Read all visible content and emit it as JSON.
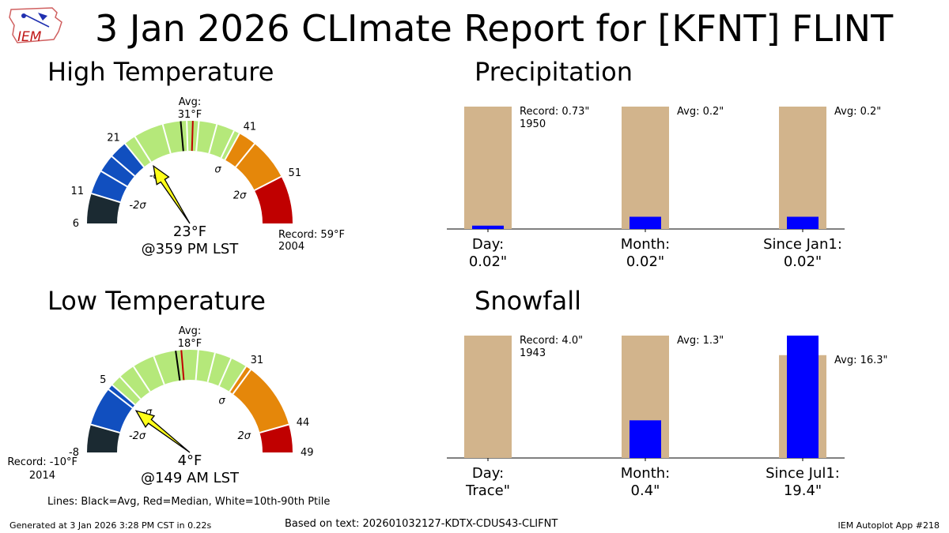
{
  "title": "3 Jan 2026 CLImate Report for [KFNT] FLINT",
  "logo_text": "IEM",
  "footer": {
    "generated": "Generated at 3 Jan 2026 3:28 PM CST in 0.22s",
    "source": "Based on text: 202601032127-KDTX-CDUS43-CLIFNT",
    "app": "IEM Autoplot App #218"
  },
  "legend_note": "Lines: Black=Avg, Red=Median, White=10th-90th Ptile",
  "colors": {
    "band_m3": "#1b2a32",
    "band_m2": "#114fbf",
    "band_m1": "#b5e87a",
    "band_p1": "#b5e87a",
    "band_p2": "#e5870a",
    "band_p3": "#c00000",
    "avg_bar": "#d2b48c",
    "obs_bar": "#0000ff",
    "needle": "#ffff1a"
  },
  "chart_data": [
    {
      "type": "gauge",
      "id": "high",
      "title": "High Temperature",
      "min": 6,
      "max": 59,
      "ticks": [
        6,
        11,
        21,
        41,
        51
      ],
      "bands": [
        6,
        11,
        21,
        31,
        41,
        51,
        59
      ],
      "sigma_labels": [
        "-2σ",
        "-σ",
        "σ",
        "2σ"
      ],
      "sigma_values": [
        11,
        21,
        41,
        51
      ],
      "avg": 31,
      "avg_label": "Avg:",
      "avg_value": "31°F",
      "median": 33,
      "percentile_lines": [
        15,
        18,
        23,
        28,
        32,
        34,
        37,
        40,
        44
      ],
      "value": 23,
      "value_label": "23°F",
      "time_label": "@359 PM LST",
      "record_label": "Record: 59°F",
      "record_year": "2004",
      "record_side": "right"
    },
    {
      "type": "gauge",
      "id": "low",
      "title": "Low Temperature",
      "min": -8,
      "max": 49,
      "ticks": [
        -8,
        5,
        31,
        44,
        49
      ],
      "bands": [
        -8,
        -3,
        5,
        18,
        31,
        44,
        49
      ],
      "sigma_labels": [
        "-2σ",
        "-σ",
        "σ",
        "2σ"
      ],
      "sigma_values": [
        -3,
        5,
        31,
        44
      ],
      "avg": 18,
      "avg_label": "Avg:",
      "avg_value": "18°F",
      "median": 19,
      "percentile_lines": [
        4,
        7,
        10,
        14,
        22,
        25,
        28,
        32
      ],
      "value": 4,
      "value_label": "4°F",
      "time_label": "@149 AM LST",
      "record_label": "Record: -10°F",
      "record_year": "2014",
      "record_side": "left"
    },
    {
      "type": "bar",
      "id": "precip",
      "title": "Precipitation",
      "categories": [
        "Day:",
        "Month:",
        "Since Jan1:"
      ],
      "value_labels": [
        "0.02\"",
        "0.02\"",
        "0.02\""
      ],
      "observed": [
        0.02,
        0.02,
        0.02
      ],
      "reference": [
        0.73,
        0.2,
        0.2
      ],
      "reference_labels": [
        "Record: 0.73\"",
        "Avg: 0.2\"",
        "Avg: 0.2\""
      ],
      "reference_sub": [
        "1950",
        "",
        ""
      ],
      "scale": "each bar normalized to its max(observed, reference)"
    },
    {
      "type": "bar",
      "id": "snow",
      "title": "Snowfall",
      "categories": [
        "Day:",
        "Month:",
        "Since Jul1:"
      ],
      "value_labels": [
        "Trace\"",
        "0.4\"",
        "19.4\""
      ],
      "observed": [
        0.0,
        0.4,
        19.4
      ],
      "reference": [
        4.0,
        1.3,
        16.3
      ],
      "reference_labels": [
        "Record: 4.0\"",
        "Avg: 1.3\"",
        "Avg: 16.3\""
      ],
      "reference_sub": [
        "1943",
        "",
        ""
      ],
      "scale": "each bar normalized to its max(observed, reference)"
    }
  ]
}
